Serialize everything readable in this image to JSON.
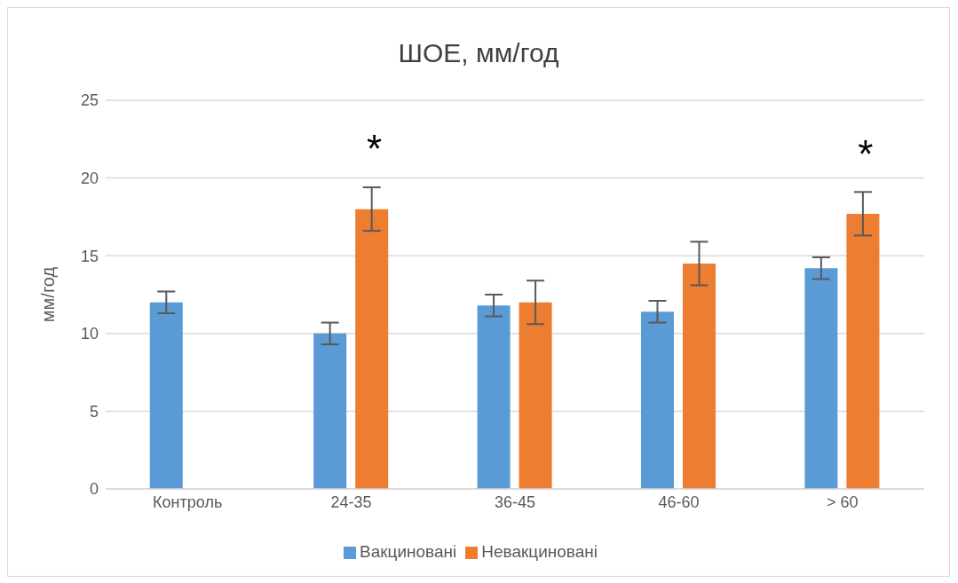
{
  "chart_data": {
    "type": "bar",
    "title": "ШОЕ, мм/год",
    "ylabel": "мм/год",
    "categories": [
      "Контроль",
      "24-35",
      "36-45",
      "46-60",
      "> 60"
    ],
    "series": [
      {
        "name": "Вакциновані",
        "color": "#5b9bd5",
        "values": [
          12,
          10,
          11.8,
          11.4,
          14.2
        ],
        "errors": [
          0.7,
          0.7,
          0.7,
          0.7,
          0.7
        ]
      },
      {
        "name": "Невакциновані",
        "color": "#ed7d31",
        "values": [
          null,
          18,
          12,
          14.5,
          17.7
        ],
        "errors": [
          null,
          1.4,
          1.4,
          1.4,
          1.4
        ]
      }
    ],
    "ylim": [
      0,
      25
    ],
    "yticks": [
      0,
      5,
      10,
      15,
      20,
      25
    ],
    "grid": "y",
    "legend": "bottom",
    "annotations": [
      {
        "text": "*",
        "x": "24-35",
        "y": 18
      },
      {
        "text": "*",
        "x": "> 60",
        "y": 17.7
      }
    ]
  }
}
